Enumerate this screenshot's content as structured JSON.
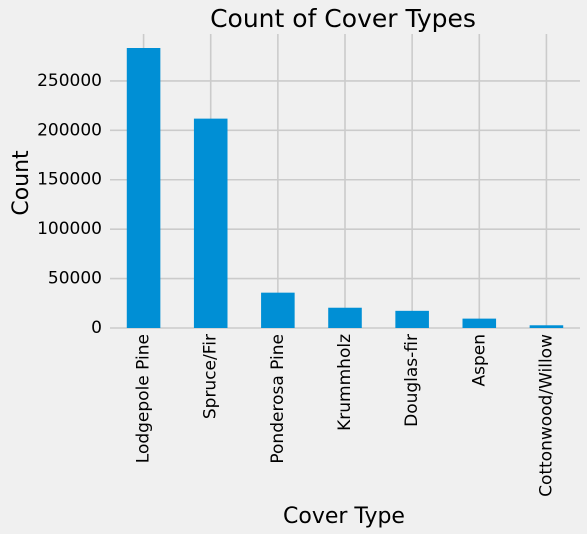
{
  "chart_data": {
    "type": "bar",
    "title": "Count of Cover Types",
    "xlabel": "Cover Type",
    "ylabel": "Count",
    "categories": [
      "Lodgepole Pine",
      "Spruce/Fir",
      "Ponderosa Pine",
      "Krummholz",
      "Douglas-fir",
      "Aspen",
      "Cottonwood/Willow"
    ],
    "values": [
      283301,
      211840,
      35754,
      20510,
      17367,
      9493,
      2747
    ],
    "yticks": [
      0,
      50000,
      100000,
      150000,
      200000,
      250000
    ],
    "ytick_labels": [
      "0",
      "50000",
      "100000",
      "150000",
      "200000",
      "250000"
    ],
    "ylim": [
      0,
      297466
    ],
    "grid": true,
    "legend": false,
    "colors": {
      "bar": "#008fd5",
      "background": "#f0f0f0",
      "grid": "#cbcbcb"
    }
  }
}
